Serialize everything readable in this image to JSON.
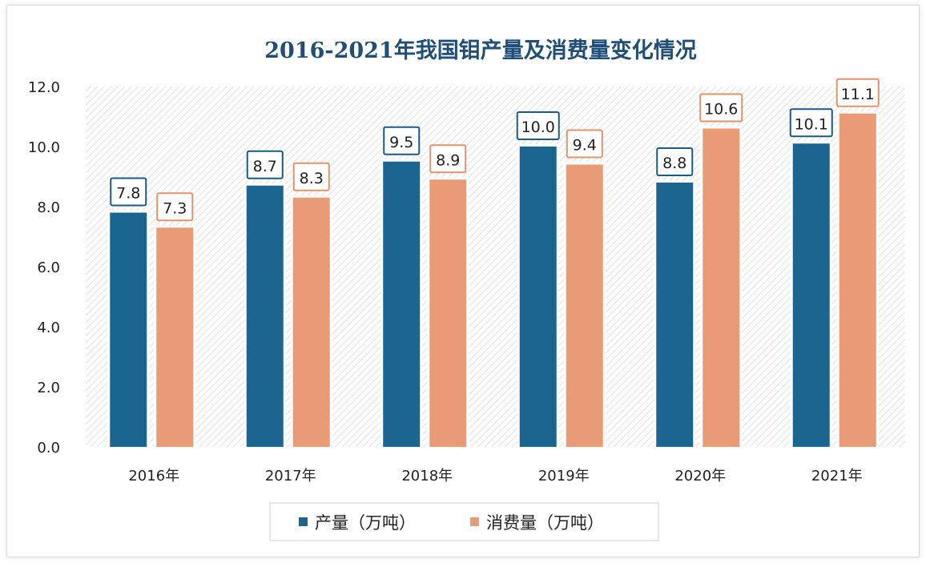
{
  "chart_data": {
    "type": "bar",
    "title": "2016-2021年我国钼产量及消费量变化情况",
    "categories": [
      "2016年",
      "2017年",
      "2018年",
      "2019年",
      "2020年",
      "2021年"
    ],
    "series": [
      {
        "name": "产量（万吨）",
        "values": [
          7.8,
          8.7,
          9.5,
          10.0,
          8.8,
          10.1
        ],
        "color": "#1a6690"
      },
      {
        "name": "消费量（万吨）",
        "values": [
          7.3,
          8.3,
          8.9,
          9.4,
          10.6,
          11.1
        ],
        "color": "#e89b74"
      }
    ],
    "ylim": [
      0,
      12
    ],
    "yticks": [
      "0.0",
      "2.0",
      "4.0",
      "6.0",
      "8.0",
      "10.0",
      "12.0"
    ],
    "grid": false,
    "legend": "bottom",
    "data_labels": true
  }
}
